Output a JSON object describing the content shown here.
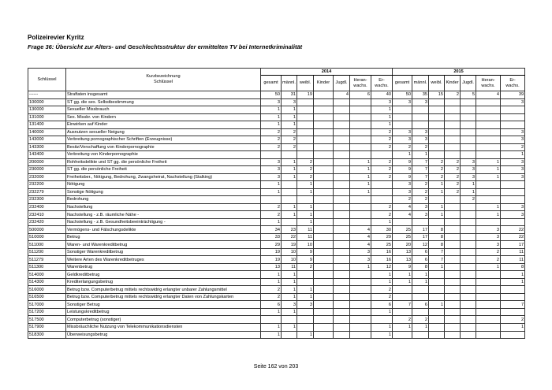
{
  "header": {
    "title": "Polizeirevier Kyritz",
    "subtitle": "Frage 36: Übersicht zur Alters- und Geschlechtsstruktur der ermittelten TV bei Internetkriminalität"
  },
  "table": {
    "col_key": "Schlüssel",
    "col_name": "Kurzbezeichnung\nSchlüssel",
    "years": [
      "2014",
      "2015"
    ],
    "subcols": [
      "gesamt",
      "männl.",
      "weibl.",
      "Kinder",
      "Jugdl.",
      "Heran-\nwachs.",
      "Er-\nwachs."
    ],
    "rows": [
      [
        "------",
        "Straftaten insgesamt",
        [
          "50",
          "31",
          "19",
          "",
          "4",
          "6",
          "40"
        ],
        [
          "50",
          "35",
          "15",
          "2",
          "5",
          "4",
          "39"
        ]
      ],
      [
        "100000",
        "ST gg. die sex. Selbstbestimmung",
        [
          "3",
          "3",
          "",
          "",
          "",
          "",
          "3"
        ],
        [
          "3",
          "3",
          "",
          "",
          "",
          "",
          "3"
        ]
      ],
      [
        "130000",
        "Sexueller Missbrauch",
        [
          "1",
          "1",
          "",
          "",
          "",
          "",
          "1"
        ],
        [
          "",
          "",
          "",
          "",
          "",
          "",
          ""
        ]
      ],
      [
        "131000",
        "Sex. Missbr. von Kindern",
        [
          "1",
          "1",
          "",
          "",
          "",
          "",
          "1"
        ],
        [
          "",
          "",
          "",
          "",
          "",
          "",
          ""
        ]
      ],
      [
        "131400",
        "Einwirken auf Kinder",
        [
          "1",
          "1",
          "",
          "",
          "",
          "",
          "1"
        ],
        [
          "",
          "",
          "",
          "",
          "",
          "",
          ""
        ]
      ],
      [
        "140000",
        "Ausnutzen sexueller Neigung",
        [
          "2",
          "2",
          "",
          "",
          "",
          "",
          "2"
        ],
        [
          "3",
          "3",
          "",
          "",
          "",
          "",
          "3"
        ]
      ],
      [
        "143000",
        "Verbreitung pornographischer Schriften (Erzeugnisse)",
        [
          "2",
          "2",
          "",
          "",
          "",
          "",
          "2"
        ],
        [
          "3",
          "3",
          "",
          "",
          "",
          "",
          "3"
        ]
      ],
      [
        "143300",
        "Besitz/Verschaffung von Kinderpornographie",
        [
          "2",
          "2",
          "",
          "",
          "",
          "",
          "2"
        ],
        [
          "2",
          "2",
          "",
          "",
          "",
          "",
          "2"
        ]
      ],
      [
        "143400",
        "Verbreitung von Kinderpornographie",
        [
          "",
          "",
          "",
          "",
          "",
          "",
          ""
        ],
        [
          "1",
          "1",
          "",
          "",
          "",
          "",
          "1"
        ]
      ],
      [
        "200000",
        "Rohheitsdelikte und ST gg. die persönliche Freiheit",
        [
          "3",
          "1",
          "2",
          "",
          "",
          "1",
          "2"
        ],
        [
          "9",
          "7",
          "2",
          "2",
          "3",
          "1",
          "3"
        ]
      ],
      [
        "230000",
        "ST gg. die persönliche Freiheit",
        [
          "3",
          "1",
          "2",
          "",
          "",
          "1",
          "2"
        ],
        [
          "9",
          "7",
          "2",
          "2",
          "3",
          "1",
          "3"
        ]
      ],
      [
        "232000",
        "Freiheitsber., Nötigung, Bedrohung, Zwangsheirat, Nachstellung (Stalking)",
        [
          "3",
          "1",
          "2",
          "",
          "",
          "1",
          "2"
        ],
        [
          "9",
          "7",
          "2",
          "2",
          "3",
          "1",
          "3"
        ]
      ],
      [
        "232200",
        "Nötigung",
        [
          "1",
          "",
          "1",
          "",
          "",
          "1",
          ""
        ],
        [
          "3",
          "2",
          "1",
          "2",
          "1",
          "",
          ""
        ]
      ],
      [
        "232279",
        "Sonstige Nötigung",
        [
          "1",
          "",
          "1",
          "",
          "",
          "1",
          ""
        ],
        [
          "3",
          "2",
          "1",
          "2",
          "1",
          "",
          ""
        ]
      ],
      [
        "232300",
        "Bedrohung",
        [
          "",
          "",
          "",
          "",
          "",
          "",
          ""
        ],
        [
          "2",
          "2",
          "",
          "",
          "2",
          "",
          ""
        ]
      ],
      [
        "232400",
        "Nachstellung",
        [
          "2",
          "1",
          "1",
          "",
          "",
          "",
          "2"
        ],
        [
          "4",
          "3",
          "1",
          "",
          "",
          "1",
          "3"
        ]
      ],
      [
        "232410",
        "Nachstellung - z.B. räumliche Nähe -",
        [
          "2",
          "1",
          "1",
          "",
          "",
          "",
          "2"
        ],
        [
          "4",
          "3",
          "1",
          "",
          "",
          "1",
          "3"
        ]
      ],
      [
        "232420",
        "Nachstellung - z.B. Gesundheitsbeeinträchtigung -",
        [
          "1",
          "",
          "1",
          "",
          "",
          "",
          "1"
        ],
        [
          "",
          "",
          "",
          "",
          "",
          "",
          ""
        ]
      ],
      [
        "500000",
        "Vermögens- und Fälschungsdelikte",
        [
          "34",
          "23",
          "11",
          "",
          "",
          "4",
          "30"
        ],
        [
          "25",
          "17",
          "8",
          "",
          "",
          "3",
          "22"
        ]
      ],
      [
        "510000",
        "Betrug",
        [
          "33",
          "22",
          "11",
          "",
          "",
          "4",
          "29"
        ],
        [
          "25",
          "17",
          "8",
          "",
          "",
          "3",
          "22"
        ]
      ],
      [
        "511000",
        "Waren- und Warenkreditbetrug",
        [
          "29",
          "19",
          "10",
          "",
          "",
          "4",
          "25"
        ],
        [
          "20",
          "12",
          "8",
          "",
          "",
          "3",
          "17"
        ]
      ],
      [
        "511200",
        "Sonstiger Warenkreditbetrug",
        [
          "19",
          "10",
          "9",
          "",
          "",
          "3",
          "16"
        ],
        [
          "13",
          "6",
          "7",
          "",
          "",
          "2",
          "11"
        ]
      ],
      [
        "511279",
        "Weitere Arten des Warenkreditbetruges",
        [
          "19",
          "10",
          "9",
          "",
          "",
          "3",
          "16"
        ],
        [
          "13",
          "6",
          "7",
          "",
          "",
          "2",
          "11"
        ]
      ],
      [
        "511300",
        "Warenbetrug",
        [
          "13",
          "11",
          "2",
          "",
          "",
          "1",
          "12"
        ],
        [
          "9",
          "8",
          "1",
          "",
          "",
          "1",
          "8"
        ]
      ],
      [
        "514000",
        "Geldkreditbetrug",
        [
          "1",
          "1",
          "",
          "",
          "",
          "",
          "1"
        ],
        [
          "1",
          "1",
          "",
          "",
          "",
          "",
          "1"
        ]
      ],
      [
        "514300",
        "Krediterlangungsbetrug",
        [
          "1",
          "1",
          "",
          "",
          "",
          "",
          "1"
        ],
        [
          "1",
          "1",
          "",
          "",
          "",
          "",
          "1"
        ]
      ],
      [
        "516000",
        "Betrug bzw. Computerbetrug mittels rechtswidrig erlangter unbarer Zahlungsmittel",
        [
          "2",
          "1",
          "1",
          "",
          "",
          "",
          "2"
        ],
        [
          "",
          "",
          "",
          "",
          "",
          "",
          ""
        ]
      ],
      [
        "516500",
        "Betrug bzw. Computerbetrug mittels rechtswidrig erlangter Daten von Zahlungskarten",
        [
          "2",
          "1",
          "1",
          "",
          "",
          "",
          "2"
        ],
        [
          "",
          "",
          "",
          "",
          "",
          "",
          ""
        ]
      ],
      [
        "517000",
        "Sonstiger Betrug",
        [
          "6",
          "3",
          "3",
          "",
          "",
          "",
          "6"
        ],
        [
          "7",
          "6",
          "1",
          "",
          "",
          "",
          "7"
        ]
      ],
      [
        "517200",
        "Leistungskreditbetrug",
        [
          "1",
          "1",
          "",
          "",
          "",
          "",
          "1"
        ],
        [
          "",
          "",
          "",
          "",
          "",
          "",
          ""
        ]
      ],
      [
        "517500",
        "Computerbetrug (sonstiger)",
        [
          "",
          "",
          "",
          "",
          "",
          "",
          ""
        ],
        [
          "2",
          "2",
          "",
          "",
          "",
          "",
          "2"
        ]
      ],
      [
        "517900",
        "Missbräuchliche Nutzung von Telekommunikationsdiensten",
        [
          "1",
          "1",
          "",
          "",
          "",
          "",
          "1"
        ],
        [
          "1",
          "1",
          "",
          "",
          "",
          "",
          "1"
        ]
      ],
      [
        "518300",
        "Überweisungsbetrug",
        [
          "1",
          "",
          "1",
          "",
          "",
          "",
          "1"
        ],
        [
          "",
          "",
          "",
          "",
          "",
          "",
          ""
        ]
      ]
    ]
  },
  "footer": {
    "page": "Seite 162 von 203"
  }
}
